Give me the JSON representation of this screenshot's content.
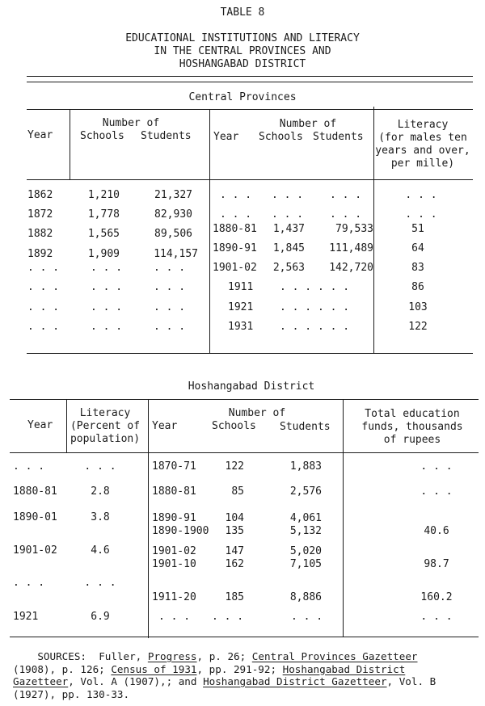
{
  "title": {
    "table_number": "TABLE 8",
    "lines": [
      "EDUCATIONAL INSTITUTIONS AND LITERACY",
      "IN THE CENTRAL PROVINCES AND",
      "HOSHANGABAD DISTRICT"
    ]
  },
  "cp": {
    "section_title": "Central Provinces",
    "left_headers": {
      "year": "Year",
      "number_of": "Number of",
      "schools": "Schools",
      "students": "Students"
    },
    "right_headers": {
      "year": "Year",
      "number_of": "Number of",
      "schools": "Schools",
      "students": "Students"
    },
    "literacy_header": [
      "Literacy",
      "(for males ten",
      "years and over,",
      "per mille)"
    ],
    "rows": [
      {
        "l_year": "1862",
        "l_schools": "1,210",
        "l_students": "21,327",
        "r_year": ". . .",
        "r_schools": ". . .",
        "r_students": ". . .",
        "literacy": ". . ."
      },
      {
        "l_year": "1872",
        "l_schools": "1,778",
        "l_students": "82,930",
        "r_year": ". . .",
        "r_schools": ". . .",
        "r_students": ". . .",
        "literacy": ". . ."
      },
      {
        "l_year": "1882",
        "l_schools": "1,565",
        "l_students": "89,506",
        "r_year": "1880-81",
        "r_schools": "1,437",
        "r_students": "79,533",
        "literacy": "51"
      },
      {
        "l_year": "1892",
        "l_schools": "1,909",
        "l_students": "114,157",
        "r_year": "1890-91",
        "r_schools": "1,845",
        "r_students": "111,489",
        "literacy": "64"
      },
      {
        "l_year": ". . .",
        "l_schools": ". . .",
        "l_students": ". . .",
        "r_year": "1901-02",
        "r_schools": "2,563",
        "r_students": "142,720",
        "literacy": "83"
      },
      {
        "l_year": ". . .",
        "l_schools": ". . .",
        "l_students": ". . .",
        "r_year": "1911",
        "r_dots": ". . . . . .",
        "literacy": "86"
      },
      {
        "l_year": ". . .",
        "l_schools": ". . .",
        "l_students": ". . .",
        "r_year": "1921",
        "r_dots": ". . . . . .",
        "literacy": "103"
      },
      {
        "l_year": ". . .",
        "l_schools": ". . .",
        "l_students": ". . .",
        "r_year": "1931",
        "r_dots": ". . . . . .",
        "literacy": "122"
      }
    ]
  },
  "hd": {
    "section_title": "Hoshangabad District",
    "headers": {
      "year": "Year",
      "literacy": [
        "Literacy",
        "(Percent of",
        "population)"
      ],
      "year2": "Year",
      "number_of": "Number of",
      "schools": "Schools",
      "students": "Students",
      "funds": [
        "Total education",
        "funds, thousands",
        "of rupees"
      ]
    },
    "rows": [
      {
        "year": ". . .",
        "literacy": ". . .",
        "year2": "1870-71",
        "schools": "122",
        "students": "1,883",
        "funds": ". . ."
      },
      {
        "year": "1880-81",
        "literacy": "2.8",
        "year2": "1880-81",
        "schools": "85",
        "students": "2,576",
        "funds": ". . ."
      },
      {
        "year": "1890-01",
        "literacy": "3.8",
        "year2": "1890-91",
        "schools": "104",
        "students": "4,061",
        "funds": ""
      },
      {
        "year": "",
        "literacy": "",
        "year2": "1890-1900",
        "schools": "135",
        "students": "5,132",
        "funds": "40.6"
      },
      {
        "year": "1901-02",
        "literacy": "4.6",
        "year2": "1901-02",
        "schools": "147",
        "students": "5,020",
        "funds": ""
      },
      {
        "year": "",
        "literacy": "",
        "year2": "1901-10",
        "schools": "162",
        "students": "7,105",
        "funds": "98.7"
      },
      {
        "year": ". . .",
        "literacy": ". . .",
        "year2": "",
        "schools": "",
        "students": "",
        "funds": ""
      },
      {
        "year": "",
        "literacy": "",
        "year2": "1911-20",
        "schools": "185",
        "students": "8,886",
        "funds": "160.2"
      },
      {
        "year": "1921",
        "literacy": "6.9",
        "year2": ". . .",
        "schools": ". . .",
        "students": ". . .",
        "funds": ". . ."
      }
    ]
  },
  "sources": {
    "label": "SOURCES:",
    "t1": "Fuller, ",
    "u1": "Progress",
    "t2": ", p. 26; ",
    "u2": "Central Provinces Gazetteer",
    "t3": "(1908), p. 126; ",
    "u3": "Census of 1931",
    "t4": ", pp. 291-92; ",
    "u4": "Hoshangabad District",
    "u5": "Gazetteer",
    "t5": ", Vol. A (1907),; and ",
    "u6": "Hoshangabad District Gazetteer",
    "t6": ", Vol. B",
    "t7": "(1927), pp. 130-33."
  }
}
